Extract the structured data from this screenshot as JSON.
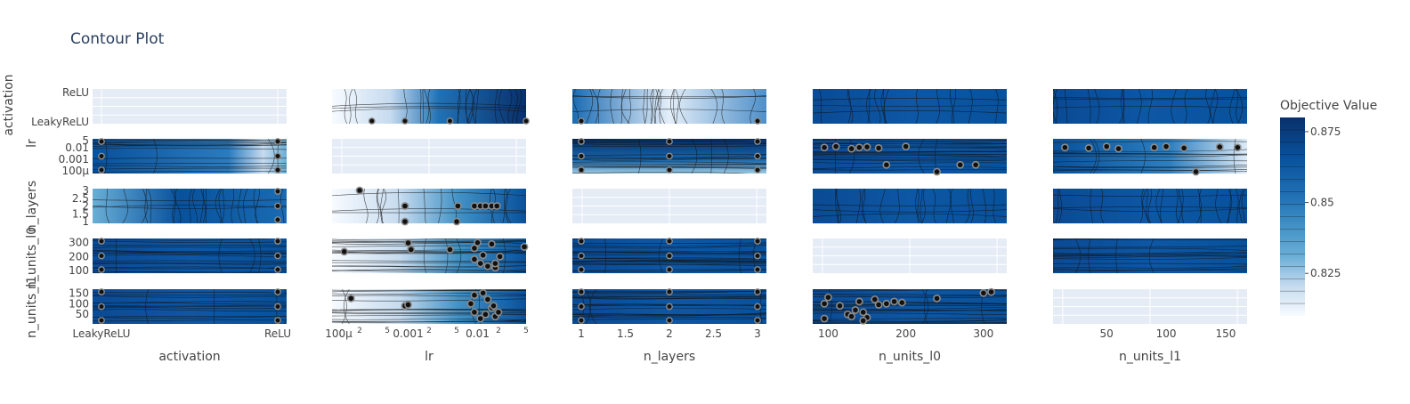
{
  "title": "Contour Plot",
  "colorbar": {
    "title": "Objective Value",
    "ticks": [
      {
        "label": "0.875",
        "value": 0.875
      },
      {
        "label": "0.85",
        "value": 0.85
      },
      {
        "label": "0.825",
        "value": 0.825
      }
    ],
    "range": [
      0.81,
      0.88
    ],
    "colors": [
      "#f7fbff",
      "#deebf7",
      "#c6dbef",
      "#9ecae1",
      "#6baed6",
      "#4292c6",
      "#2171b5",
      "#08519c",
      "#08306b"
    ]
  },
  "chart_data": {
    "type": "contour",
    "params": [
      "activation",
      "lr",
      "n_layers",
      "n_units_l0",
      "n_units_l1"
    ],
    "x_axes": [
      {
        "title": "activation",
        "ticks": [
          {
            "label": "LeakyReLU",
            "value": 0
          },
          {
            "label": "ReLU",
            "value": 1
          }
        ]
      },
      {
        "title": "lr",
        "log": true,
        "ticks": [
          {
            "label": "100μ",
            "value": 0.0001,
            "major": true
          },
          {
            "label": "2",
            "value": 0.0002,
            "major": false
          },
          {
            "label": "5",
            "value": 0.0005,
            "major": false
          },
          {
            "label": "0.001",
            "value": 0.001,
            "major": true
          },
          {
            "label": "2",
            "value": 0.002,
            "major": false
          },
          {
            "label": "5",
            "value": 0.005,
            "major": false
          },
          {
            "label": "0.01",
            "value": 0.01,
            "major": true
          },
          {
            "label": "2",
            "value": 0.02,
            "major": false
          },
          {
            "label": "5",
            "value": 0.05,
            "major": false
          }
        ]
      },
      {
        "title": "n_layers",
        "ticks": [
          {
            "label": "1",
            "value": 1
          },
          {
            "label": "1.5",
            "value": 1.5
          },
          {
            "label": "2",
            "value": 2
          },
          {
            "label": "2.5",
            "value": 2.5
          },
          {
            "label": "3",
            "value": 3
          }
        ]
      },
      {
        "title": "n_units_l0",
        "ticks": [
          {
            "label": "100",
            "value": 100
          },
          {
            "label": "200",
            "value": 200
          },
          {
            "label": "300",
            "value": 300
          }
        ]
      },
      {
        "title": "n_units_l1",
        "ticks": [
          {
            "label": "50",
            "value": 50
          },
          {
            "label": "100",
            "value": 100
          },
          {
            "label": "150",
            "value": 150
          }
        ]
      }
    ],
    "y_axes": [
      {
        "title": "activation",
        "ticks": [
          {
            "label": "LeakyReLU",
            "value": 0
          },
          {
            "label": "ReLU",
            "value": 1
          }
        ]
      },
      {
        "title": "lr",
        "ticks": [
          {
            "label": "0.01",
            "value": 0.01
          },
          {
            "label": "0.001",
            "value": 0.001
          },
          {
            "label": "100μ",
            "value": 0.0001
          },
          {
            "label": "5",
            "value": 0.05
          }
        ]
      },
      {
        "title": "n_layers",
        "ticks": [
          {
            "label": "3",
            "value": 3
          },
          {
            "label": "2.5",
            "value": 2.5
          },
          {
            "label": "2",
            "value": 2
          },
          {
            "label": "1.5",
            "value": 1.5
          },
          {
            "label": "1",
            "value": 1
          }
        ]
      },
      {
        "title": "n_units_l0",
        "ticks": [
          {
            "label": "300",
            "value": 300
          },
          {
            "label": "200",
            "value": 200
          },
          {
            "label": "100",
            "value": 100
          }
        ]
      },
      {
        "title": "n_units_l1",
        "ticks": [
          {
            "label": "150",
            "value": 150
          },
          {
            "label": "100",
            "value": 100
          },
          {
            "label": "50",
            "value": 50
          }
        ]
      }
    ],
    "trial_points": {
      "n_layers_vs_lr": [
        [
          0.0002,
          3
        ],
        [
          0.0009,
          2
        ],
        [
          0.0009,
          1
        ],
        [
          0.0052,
          2
        ],
        [
          0.009,
          2
        ],
        [
          0.011,
          2
        ],
        [
          0.013,
          2
        ],
        [
          0.016,
          2
        ],
        [
          0.019,
          2
        ],
        [
          0.005,
          1
        ]
      ],
      "n_units_l0_vs_lr": [
        [
          0.00012,
          235
        ],
        [
          0.001,
          298
        ],
        [
          0.0011,
          250
        ],
        [
          0.004,
          250
        ],
        [
          0.009,
          180
        ],
        [
          0.011,
          150
        ],
        [
          0.012,
          210
        ],
        [
          0.014,
          130
        ],
        [
          0.016,
          290
        ],
        [
          0.018,
          120
        ],
        [
          0.021,
          200
        ],
        [
          0.009,
          260
        ],
        [
          0.01,
          300
        ],
        [
          0.018,
          150
        ],
        [
          0.055,
          270
        ]
      ],
      "n_units_l1_vs_lr": [
        [
          0.00015,
          125
        ],
        [
          0.0009,
          90
        ],
        [
          0.001,
          95
        ],
        [
          0.008,
          100
        ],
        [
          0.009,
          60
        ],
        [
          0.011,
          30
        ],
        [
          0.013,
          50
        ],
        [
          0.014,
          120
        ],
        [
          0.016,
          80
        ],
        [
          0.018,
          40
        ],
        [
          0.02,
          60
        ],
        [
          0.009,
          140
        ],
        [
          0.012,
          150
        ],
        [
          0.017,
          90
        ]
      ],
      "n_units_l1_vs_n_units_l0": [
        [
          95,
          100
        ],
        [
          100,
          130
        ],
        [
          115,
          90
        ],
        [
          125,
          50
        ],
        [
          135,
          70
        ],
        [
          140,
          110
        ],
        [
          145,
          60
        ],
        [
          150,
          35
        ],
        [
          160,
          120
        ],
        [
          165,
          95
        ],
        [
          175,
          100
        ],
        [
          185,
          110
        ],
        [
          195,
          105
        ],
        [
          240,
          125
        ],
        [
          300,
          150
        ],
        [
          310,
          155
        ],
        [
          95,
          30
        ],
        [
          130,
          40
        ],
        [
          145,
          20
        ]
      ],
      "lr_vs_n_units_l0": [
        [
          95,
          0.01
        ],
        [
          110,
          0.012
        ],
        [
          130,
          0.008
        ],
        [
          140,
          0.01
        ],
        [
          150,
          0.011
        ],
        [
          165,
          0.009
        ],
        [
          175,
          0.0004
        ],
        [
          200,
          0.012
        ],
        [
          240,
          0.0001
        ],
        [
          270,
          0.0004
        ],
        [
          290,
          0.0004
        ]
      ],
      "lr_vs_n_units_l1": [
        [
          15,
          0.01
        ],
        [
          35,
          0.009
        ],
        [
          50,
          0.012
        ],
        [
          60,
          0.008
        ],
        [
          90,
          0.01
        ],
        [
          100,
          0.012
        ],
        [
          115,
          0.009
        ],
        [
          125,
          0.0001
        ],
        [
          145,
          0.011
        ],
        [
          160,
          0.01
        ]
      ]
    }
  }
}
